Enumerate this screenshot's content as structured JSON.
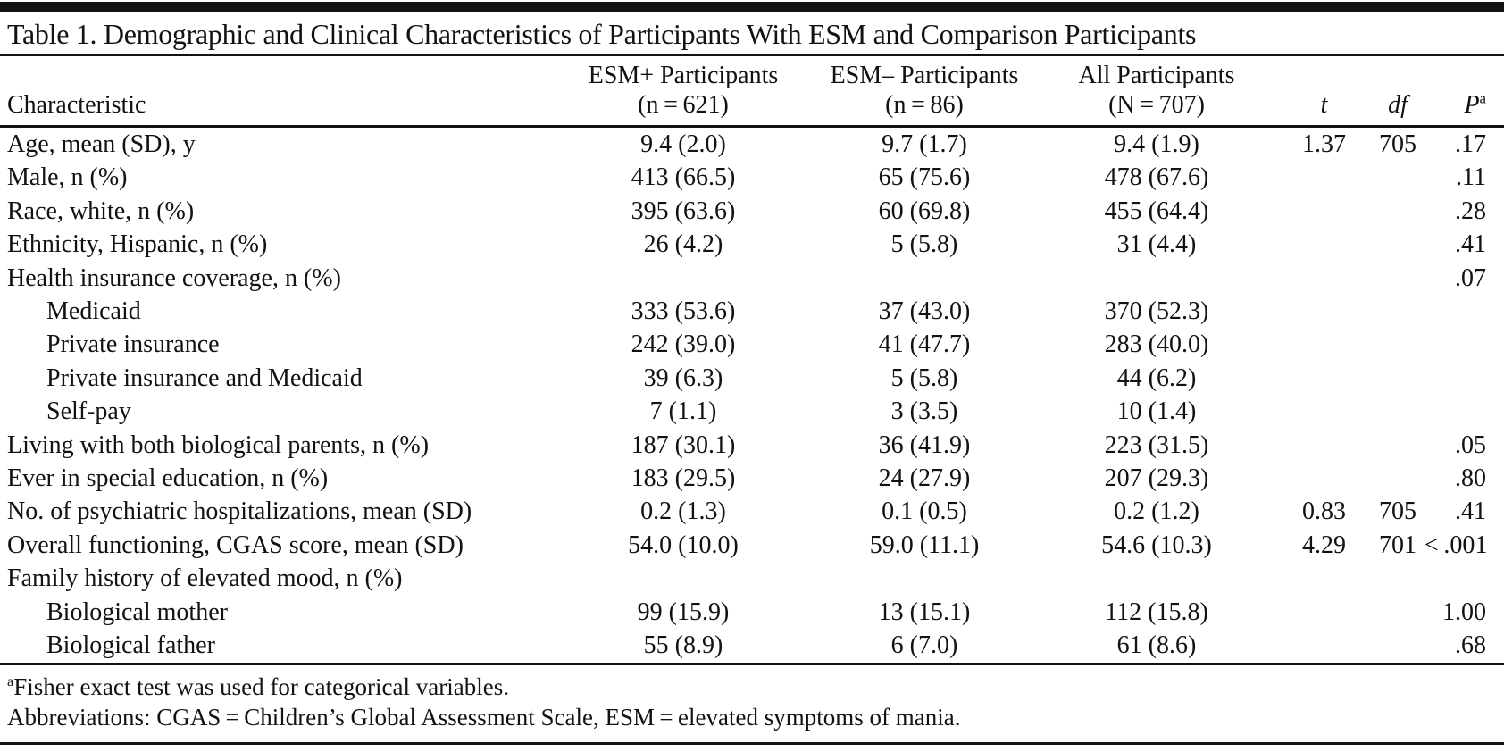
{
  "table": {
    "title": "Table 1. Demographic and Clinical Characteristics of Participants With ESM and Comparison Participants",
    "header": {
      "characteristic": "Characteristic",
      "groups": [
        {
          "line1": "ESM+ Participants",
          "line2": "(n = 621)"
        },
        {
          "line1": "ESM– Participants",
          "line2": "(n = 86)"
        },
        {
          "line1": "All Participants",
          "line2": "(N = 707)"
        }
      ],
      "t_label": "t",
      "df_label": "df",
      "p_label": "P",
      "p_sup": "a"
    },
    "rows": [
      {
        "label": "Age, mean (SD), y",
        "indent": false,
        "cells": [
          "9.4 (2.0)",
          "9.7 (1.7)",
          "9.4 (1.9)",
          "1.37",
          "705",
          ".17"
        ]
      },
      {
        "label": "Male, n (%)",
        "indent": false,
        "cells": [
          "413 (66.5)",
          "65 (75.6)",
          "478 (67.6)",
          "",
          "",
          ".11"
        ]
      },
      {
        "label": "Race, white, n (%)",
        "indent": false,
        "cells": [
          "395 (63.6)",
          "60 (69.8)",
          "455 (64.4)",
          "",
          "",
          ".28"
        ]
      },
      {
        "label": "Ethnicity, Hispanic, n (%)",
        "indent": false,
        "cells": [
          "26 (4.2)",
          "5 (5.8)",
          "31 (4.4)",
          "",
          "",
          ".41"
        ]
      },
      {
        "label": "Health insurance coverage, n (%)",
        "indent": false,
        "cells": [
          "",
          "",
          "",
          "",
          "",
          ".07"
        ]
      },
      {
        "label": "Medicaid",
        "indent": true,
        "cells": [
          "333 (53.6)",
          "37 (43.0)",
          "370 (52.3)",
          "",
          "",
          ""
        ]
      },
      {
        "label": "Private insurance",
        "indent": true,
        "cells": [
          "242 (39.0)",
          "41 (47.7)",
          "283 (40.0)",
          "",
          "",
          ""
        ]
      },
      {
        "label": "Private insurance and Medicaid",
        "indent": true,
        "cells": [
          "39 (6.3)",
          "5 (5.8)",
          "44 (6.2)",
          "",
          "",
          ""
        ]
      },
      {
        "label": "Self-pay",
        "indent": true,
        "cells": [
          "7 (1.1)",
          "3 (3.5)",
          "10 (1.4)",
          "",
          "",
          ""
        ]
      },
      {
        "label": "Living with both biological parents, n (%)",
        "indent": false,
        "cells": [
          "187 (30.1)",
          "36 (41.9)",
          "223 (31.5)",
          "",
          "",
          ".05"
        ]
      },
      {
        "label": "Ever in special education, n (%)",
        "indent": false,
        "cells": [
          "183 (29.5)",
          "24 (27.9)",
          "207 (29.3)",
          "",
          "",
          ".80"
        ]
      },
      {
        "label": "No. of psychiatric hospitalizations, mean (SD)",
        "indent": false,
        "cells": [
          "0.2 (1.3)",
          "0.1 (0.5)",
          "0.2 (1.2)",
          "0.83",
          "705",
          ".41"
        ]
      },
      {
        "label": "Overall functioning, CGAS score, mean (SD)",
        "indent": false,
        "cells": [
          "54.0 (10.0)",
          "59.0 (11.1)",
          "54.6 (10.3)",
          "4.29",
          "701",
          "< .001"
        ]
      },
      {
        "label": "Family history of elevated mood, n (%)",
        "indent": false,
        "cells": [
          "",
          "",
          "",
          "",
          "",
          ""
        ]
      },
      {
        "label": "Biological mother",
        "indent": true,
        "cells": [
          "99 (15.9)",
          "13 (15.1)",
          "112 (15.8)",
          "",
          "",
          "1.00"
        ]
      },
      {
        "label": "Biological father",
        "indent": true,
        "cells": [
          "55 (8.9)",
          "6 (7.0)",
          "61 (8.6)",
          "",
          "",
          ".68"
        ]
      }
    ],
    "footnotes": [
      {
        "sup": "a",
        "text": "Fisher exact test was used for categorical variables."
      },
      {
        "sup": "",
        "text": "Abbreviations: CGAS = Children’s Global Assessment Scale, ESM = elevated symptoms of mania."
      }
    ]
  }
}
